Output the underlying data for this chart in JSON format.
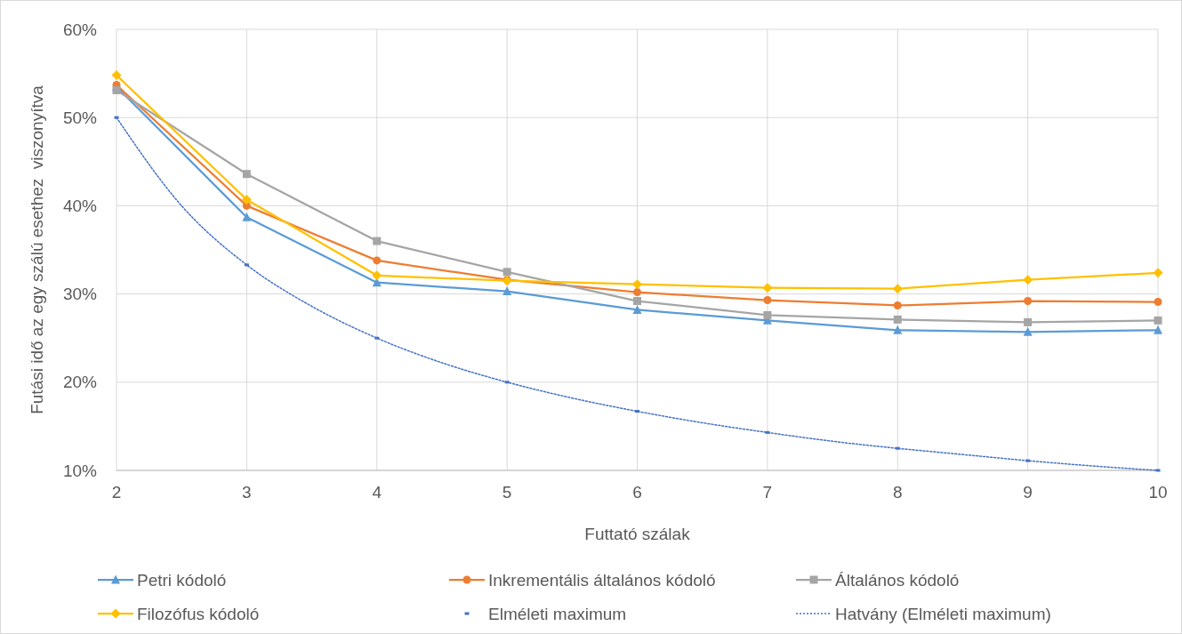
{
  "chart_data": {
    "type": "line",
    "xlabel": "Futtató szálak",
    "ylabel": "Futási idő az egy szálú esethez  viszonyítva",
    "x": [
      2,
      3,
      4,
      5,
      6,
      7,
      8,
      9,
      10
    ],
    "xlim": [
      2,
      10
    ],
    "xticks": [
      2,
      3,
      4,
      5,
      6,
      7,
      8,
      9,
      10
    ],
    "ylim": [
      10,
      60
    ],
    "yticks": [
      {
        "value": 10,
        "label": "10%"
      },
      {
        "value": 20,
        "label": "20%"
      },
      {
        "value": 30,
        "label": "30%"
      },
      {
        "value": 40,
        "label": "40%"
      },
      {
        "value": 50,
        "label": "50%"
      },
      {
        "value": 60,
        "label": "60%"
      }
    ],
    "grid": true,
    "legend": "bottom",
    "series": [
      {
        "name": "Petri kódoló",
        "color": "#5b9bd5",
        "marker": "triangle",
        "values": [
          53.5,
          38.7,
          31.3,
          30.3,
          28.2,
          27.0,
          25.9,
          25.7,
          25.9
        ]
      },
      {
        "name": "Inkrementális általános kódoló",
        "color": "#ed7d31",
        "marker": "circle",
        "values": [
          53.7,
          40.0,
          33.8,
          31.6,
          30.2,
          29.3,
          28.7,
          29.2,
          29.1
        ]
      },
      {
        "name": "Általános kódoló",
        "color": "#a5a5a5",
        "marker": "square",
        "values": [
          53.1,
          43.6,
          36.0,
          32.5,
          29.2,
          27.6,
          27.1,
          26.8,
          27.0
        ]
      },
      {
        "name": "Filozófus kódoló",
        "color": "#ffc000",
        "marker": "diamond",
        "values": [
          54.8,
          40.7,
          32.1,
          31.5,
          31.1,
          30.7,
          30.6,
          31.6,
          32.4
        ]
      },
      {
        "name": "Elméleti maximum",
        "type": "scatter",
        "color": "#4472c4",
        "marker": "square",
        "values": [
          50,
          33.3,
          25,
          20,
          16.7,
          14.3,
          12.5,
          11.1,
          10
        ]
      },
      {
        "name": "Hatvány (Elméleti maximum)",
        "type": "line",
        "color": "#4472c4",
        "marker": "none",
        "line_style": "dotted",
        "x": [
          2,
          2.5,
          3,
          3.5,
          4,
          4.5,
          5,
          5.5,
          6,
          6.5,
          7,
          7.5,
          8,
          8.5,
          9,
          9.5,
          10
        ],
        "values": [
          50,
          40,
          33.3,
          28.6,
          25,
          22.2,
          20,
          18.2,
          16.7,
          15.4,
          14.3,
          13.3,
          12.5,
          11.8,
          11.1,
          10.5,
          10
        ]
      }
    ]
  }
}
